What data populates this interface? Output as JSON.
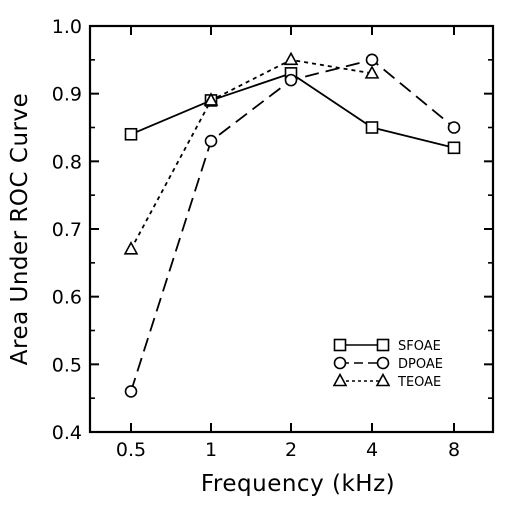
{
  "chart_data": {
    "type": "line",
    "categories": [
      "0.5",
      "1",
      "2",
      "4",
      "8"
    ],
    "xlabel": "Frequency (kHz)",
    "ylabel": "Area Under ROC Curve",
    "ylim": [
      0.4,
      1.0
    ],
    "yticks": [
      "0.4",
      "0.5",
      "0.6",
      "0.7",
      "0.8",
      "0.9",
      "1.0"
    ],
    "grid": false,
    "legend_position": "bottom-right",
    "series": [
      {
        "name": "SFOAE",
        "marker": "square",
        "line": "solid",
        "values": [
          0.84,
          0.89,
          0.93,
          0.85,
          0.82
        ]
      },
      {
        "name": "DPOAE",
        "marker": "circle",
        "line": "long-dash",
        "values": [
          0.46,
          0.83,
          0.92,
          0.95,
          0.85
        ]
      },
      {
        "name": "TEOAE",
        "marker": "triangle",
        "line": "dotted",
        "values": [
          0.67,
          0.89,
          0.95,
          0.93,
          null
        ]
      }
    ]
  }
}
